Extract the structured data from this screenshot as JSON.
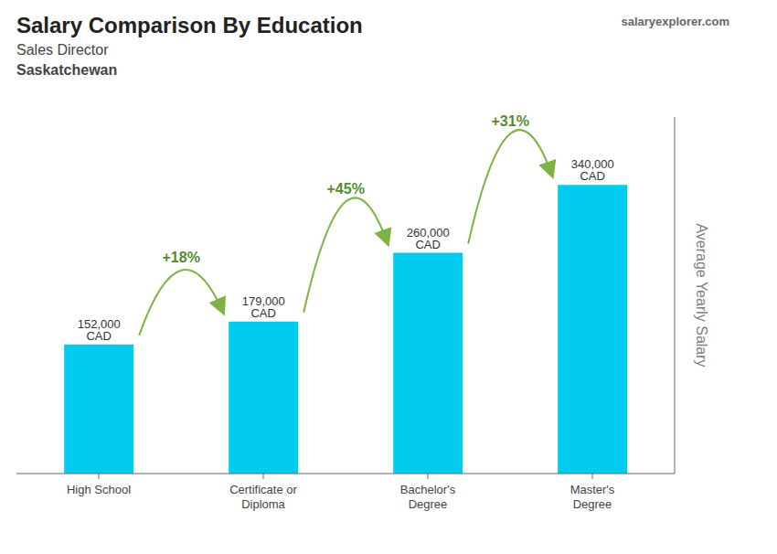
{
  "chart_data": {
    "type": "bar",
    "title": "Salary Comparison By Education",
    "subtitle": [
      "Sales Director",
      "Saskatchewan"
    ],
    "y_label": "Average Yearly Salary",
    "categories": [
      "High School",
      "Certificate or\nDiploma",
      "Bachelor's\nDegree",
      "Master's\nDegree"
    ],
    "values": [
      152000,
      179000,
      260000,
      340000
    ],
    "value_labels": [
      "152,000 CAD",
      "179,000 CAD",
      "260,000 CAD",
      "340,000 CAD"
    ],
    "data_labels": true,
    "annotations": [
      "+18%",
      "+45%",
      "+31%"
    ],
    "watermark": "salaryexplorer.com",
    "color": "#00ccee",
    "ylim": [
      0,
      420000
    ],
    "grid": false,
    "tick_labels": "x"
  }
}
